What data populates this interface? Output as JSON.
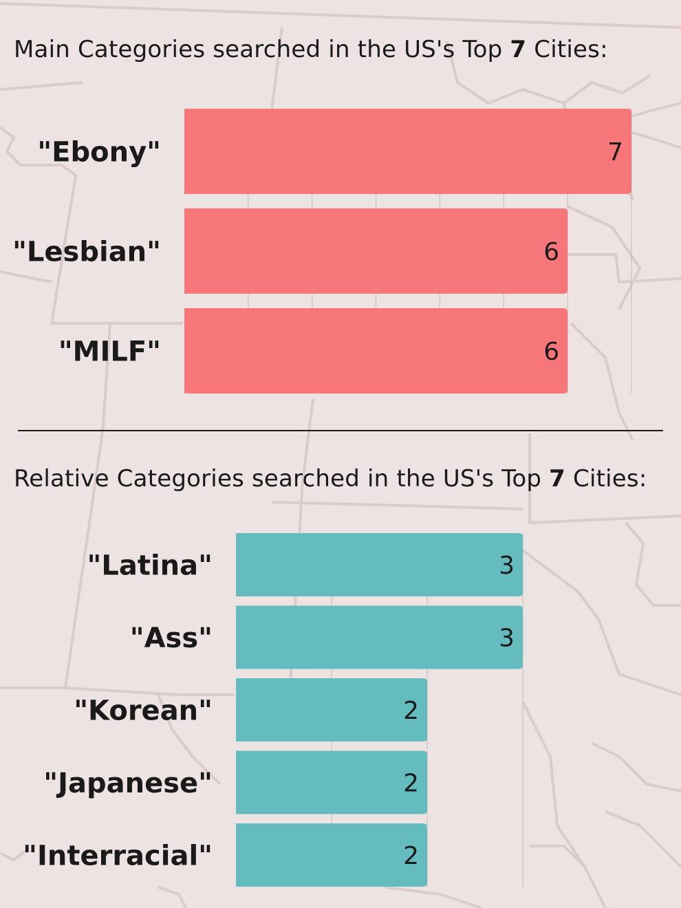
{
  "colors": {
    "background": "#ede3e2",
    "map_lines": "#d9cccb",
    "main_bars": "#f7767a",
    "relative_bars": "#65bcbe",
    "gridlines": "#c9c0bf",
    "text": "#1a1a1a"
  },
  "headings": {
    "main": {
      "pre": "Main Categories searched in the US's Top ",
      "bold": "7",
      "post": " Cities:"
    },
    "relative": {
      "pre": "Relative Categories searched in the US's Top ",
      "bold": "7",
      "post": " Cities:"
    }
  },
  "chart_data": [
    {
      "type": "bar",
      "orientation": "horizontal",
      "categories": [
        "\"Ebony\"",
        "\"Lesbian\"",
        "\"MILF\""
      ],
      "values": [
        7,
        6,
        6
      ],
      "xlim": [
        0,
        7
      ],
      "grid": true,
      "data_labels": true
    },
    {
      "type": "bar",
      "orientation": "horizontal",
      "categories": [
        "\"Latina\"",
        "\"Ass\"",
        "\"Korean\"",
        "\"Japanese\"",
        "\"Interracial\""
      ],
      "values": [
        3,
        3,
        2,
        2,
        2
      ],
      "xlim": [
        0,
        3
      ],
      "grid": true,
      "data_labels": true
    }
  ]
}
